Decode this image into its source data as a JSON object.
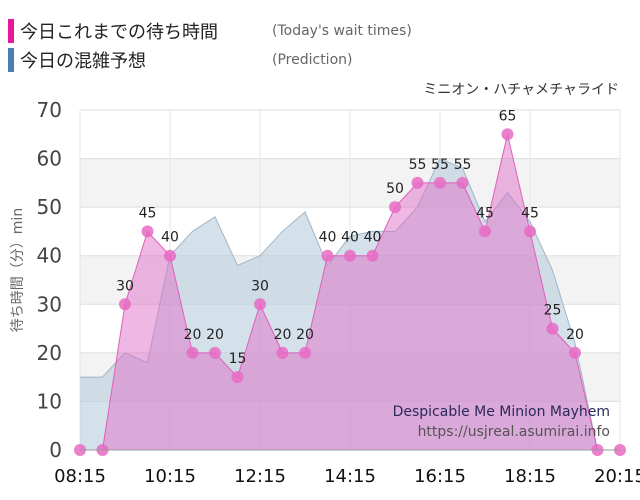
{
  "legend": {
    "today_label": "今日これまでの待ち時間",
    "today_sub": "(Today's wait times)",
    "prediction_label": "今日の混雑予想",
    "prediction_sub": "(Prediction)"
  },
  "colors": {
    "today": "#e8189a",
    "today_fill": "#e070c8",
    "prediction": "#4a7fb5",
    "prediction_fill": "#b8ccdc",
    "grid": "#dddddd",
    "band": "#f3f3f3"
  },
  "chart_data": {
    "type": "area",
    "subtitle": "ミニオン・ハチャメチャライド",
    "ylabel": "待ち時間（分）min",
    "ylim": [
      0,
      70
    ],
    "yticks": [
      0,
      10,
      20,
      30,
      40,
      50,
      60,
      70
    ],
    "x_tick_labels": [
      "08:15",
      "10:15",
      "12:15",
      "14:15",
      "16:15",
      "18:15",
      "20:15"
    ],
    "x_range": [
      "08:15",
      "20:15"
    ],
    "series": [
      {
        "key": "today",
        "x": [
          "08:15",
          "08:45",
          "09:15",
          "09:45",
          "10:15",
          "10:45",
          "11:15",
          "11:45",
          "12:15",
          "12:45",
          "13:15",
          "13:45",
          "14:15",
          "14:45",
          "15:15",
          "15:45",
          "16:15",
          "16:45",
          "17:15",
          "17:45",
          "18:15",
          "18:45",
          "19:15",
          "19:45",
          "20:15"
        ],
        "values": [
          0,
          0,
          30,
          45,
          40,
          20,
          20,
          15,
          30,
          20,
          20,
          40,
          40,
          40,
          50,
          55,
          55,
          55,
          45,
          65,
          45,
          25,
          20,
          0,
          0
        ],
        "labels": [
          null,
          null,
          "30",
          "45",
          "40",
          "20",
          "20",
          "15",
          "30",
          "20",
          "20",
          "40",
          "40",
          "40",
          "50",
          "55",
          "55",
          "55",
          "45",
          "65",
          "45",
          "25",
          "20",
          null,
          null
        ]
      },
      {
        "key": "prediction",
        "x": [
          "08:15",
          "08:45",
          "09:15",
          "09:45",
          "10:15",
          "10:45",
          "11:15",
          "11:45",
          "12:15",
          "12:45",
          "13:15",
          "13:45",
          "14:15",
          "14:45",
          "15:15",
          "15:45",
          "16:15",
          "16:45",
          "17:15",
          "17:45",
          "18:15",
          "18:45",
          "19:15",
          "19:45",
          "20:15"
        ],
        "values": [
          15,
          15,
          20,
          18,
          40,
          45,
          48,
          38,
          40,
          45,
          49,
          38,
          44,
          45,
          45,
          50,
          60,
          58,
          47,
          53,
          47,
          37,
          22,
          0,
          0
        ]
      }
    ]
  },
  "annotations": {
    "attraction_en": "Despicable Me Minion Mayhem",
    "site": "https://usjreal.asumirai.info"
  }
}
